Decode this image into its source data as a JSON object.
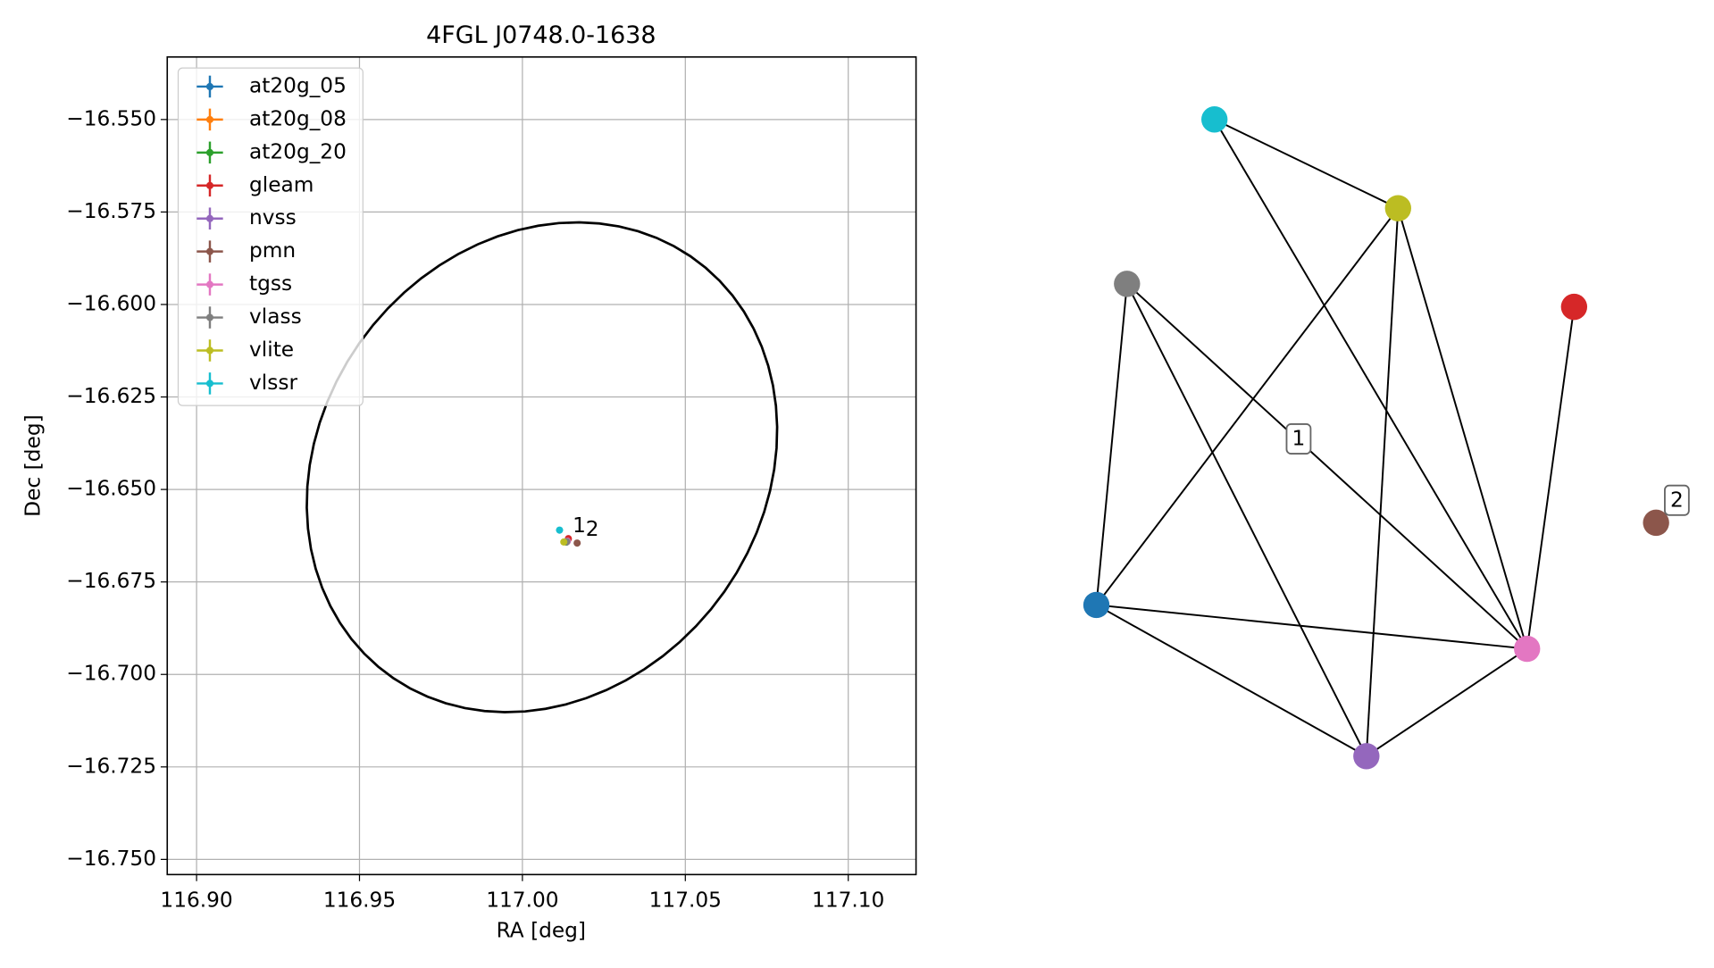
{
  "chart_data": {
    "type": "scatter",
    "title": "4FGL J0748.0-1638",
    "xlabel": "RA [deg]",
    "ylabel": "Dec [deg]",
    "xlim": [
      116.891,
      117.1208
    ],
    "ylim": [
      -16.7541,
      -16.5331
    ],
    "xticks": [
      {
        "value": 116.9,
        "label": "116.90"
      },
      {
        "value": 116.95,
        "label": "116.95"
      },
      {
        "value": 117.0,
        "label": "117.00"
      },
      {
        "value": 117.05,
        "label": "117.05"
      },
      {
        "value": 117.1,
        "label": "117.10"
      }
    ],
    "yticks": [
      {
        "value": -16.55,
        "label": "−16.550"
      },
      {
        "value": -16.575,
        "label": "−16.575"
      },
      {
        "value": -16.6,
        "label": "−16.600"
      },
      {
        "value": -16.625,
        "label": "−16.625"
      },
      {
        "value": -16.65,
        "label": "−16.650"
      },
      {
        "value": -16.675,
        "label": "−16.675"
      },
      {
        "value": -16.7,
        "label": "−16.700"
      },
      {
        "value": -16.725,
        "label": "−16.725"
      },
      {
        "value": -16.75,
        "label": "−16.750"
      }
    ],
    "grid": true,
    "legend": "upper left",
    "series": [
      {
        "name": "at20g_05",
        "color": "#1f77b4",
        "x": [
          117.0135
        ],
        "values": [
          -16.6642
        ]
      },
      {
        "name": "at20g_08",
        "color": "#ff7f0e",
        "x": [
          117.0135
        ],
        "values": [
          -16.6642
        ]
      },
      {
        "name": "at20g_20",
        "color": "#2ca02c",
        "x": [
          117.0135
        ],
        "values": [
          -16.6642
        ]
      },
      {
        "name": "gleam",
        "color": "#d62728",
        "x": [
          117.0141
        ],
        "values": [
          -16.6633
        ]
      },
      {
        "name": "nvss",
        "color": "#9467bd",
        "x": [
          117.0137
        ],
        "values": [
          -16.6641
        ]
      },
      {
        "name": "pmn",
        "color": "#8c564b",
        "x": [
          117.0168
        ],
        "values": [
          -16.6645
        ]
      },
      {
        "name": "tgss",
        "color": "#e377c2",
        "x": [
          117.0138
        ],
        "values": [
          -16.664
        ]
      },
      {
        "name": "vlass",
        "color": "#7f7f7f",
        "x": [
          117.0136
        ],
        "values": [
          -16.6641
        ]
      },
      {
        "name": "vlite",
        "color": "#bcbd22",
        "x": [
          117.0127
        ],
        "values": [
          -16.6642
        ]
      },
      {
        "name": "vlssr",
        "color": "#17becf",
        "x": [
          117.0114
        ],
        "values": [
          -16.661
        ]
      }
    ],
    "ellipse": {
      "cx": 117.006,
      "cy": -16.644,
      "a": 0.075,
      "b": 0.063,
      "angle": 30,
      "color": "#000000"
    },
    "annotations": [
      {
        "text": "1",
        "x": 117.0171,
        "y": -16.66
      },
      {
        "text": "2",
        "x": 117.0211,
        "y": -16.661
      }
    ]
  },
  "graph": {
    "labels": [
      "1",
      "2"
    ]
  }
}
